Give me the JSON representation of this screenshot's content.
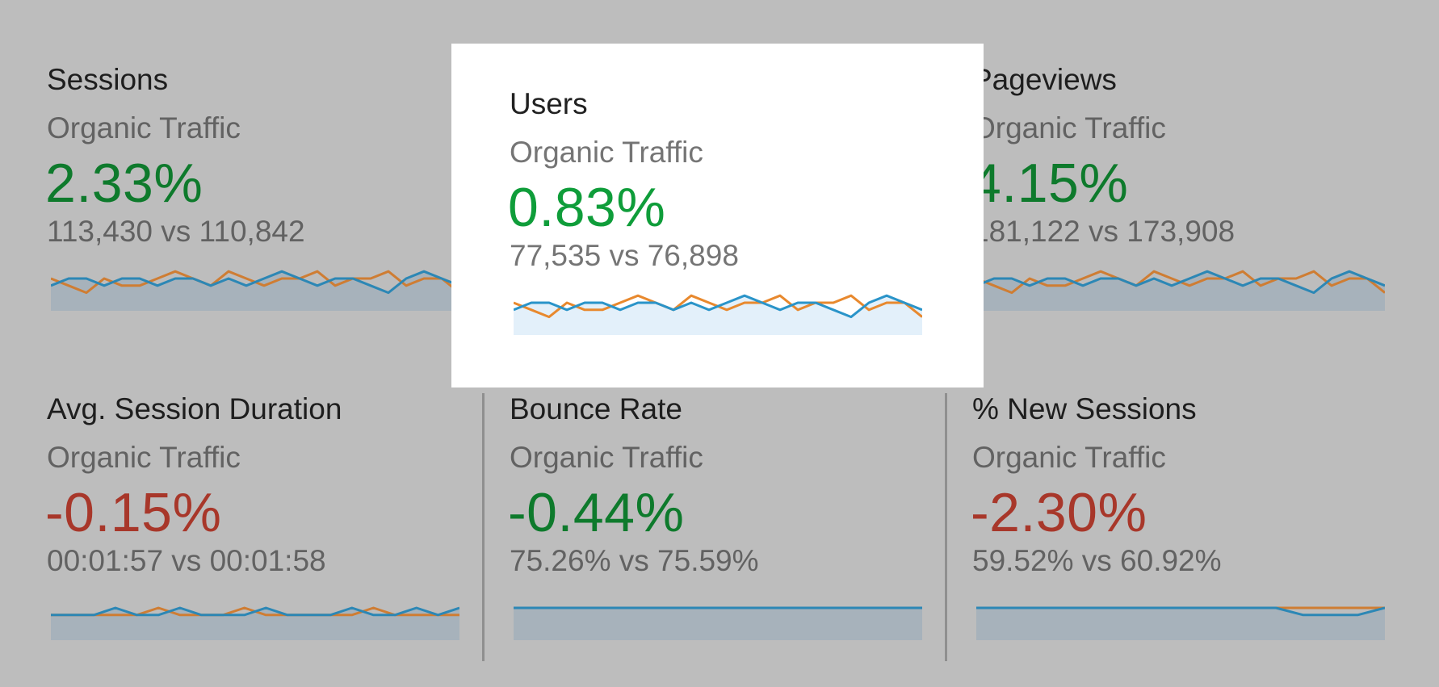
{
  "cards": [
    {
      "title": "Sessions",
      "segment": "Organic Traffic",
      "change": "2.33%",
      "compare": "113,430 vs 110,842",
      "trend": "good"
    },
    {
      "title": "Users",
      "segment": "Organic Traffic",
      "change": "0.83%",
      "compare": "77,535 vs 76,898",
      "trend": "good"
    },
    {
      "title": "Pageviews",
      "segment": "Organic Traffic",
      "change": "4.15%",
      "compare": "181,122 vs 173,908",
      "trend": "good"
    },
    {
      "title": "Avg. Session Duration",
      "segment": "Organic Traffic",
      "change": "-0.15%",
      "compare": "00:01:57 vs 00:01:58",
      "trend": "bad"
    },
    {
      "title": "Bounce Rate",
      "segment": "Organic Traffic",
      "change": "-0.44%",
      "compare": "75.26% vs 75.59%",
      "trend": "good"
    },
    {
      "title": "% New Sessions",
      "segment": "Organic Traffic",
      "change": "-2.30%",
      "compare": "59.52% vs 60.92%",
      "trend": "bad"
    }
  ],
  "colors": {
    "series_current": "#2a94c9",
    "series_previous": "#e8892e",
    "good": "#0e7a2c",
    "bad": "#a8372a",
    "overlay": "#bdbdbd",
    "focus_bg": "#ffffff"
  },
  "sparklines": {
    "sessions": {
      "current": [
        4,
        5,
        5,
        4,
        5,
        5,
        4,
        5,
        5,
        4,
        5,
        4,
        5,
        6,
        5,
        4,
        5,
        5,
        4,
        3,
        5,
        6,
        5,
        4
      ],
      "previous": [
        5,
        4,
        3,
        5,
        4,
        4,
        5,
        6,
        5,
        4,
        6,
        5,
        4,
        5,
        5,
        6,
        4,
        5,
        5,
        6,
        4,
        5,
        5,
        3
      ]
    },
    "users": {
      "current": [
        4,
        5,
        5,
        4,
        5,
        5,
        4,
        5,
        5,
        4,
        5,
        4,
        5,
        6,
        5,
        4,
        5,
        5,
        4,
        3,
        5,
        6,
        5,
        4
      ],
      "previous": [
        5,
        4,
        3,
        5,
        4,
        4,
        5,
        6,
        5,
        4,
        6,
        5,
        4,
        5,
        5,
        6,
        4,
        5,
        5,
        6,
        4,
        5,
        5,
        3
      ]
    },
    "pageviews": {
      "current": [
        4,
        5,
        5,
        4,
        5,
        5,
        4,
        5,
        5,
        4,
        5,
        4,
        5,
        6,
        5,
        4,
        5,
        5,
        4,
        3,
        5,
        6,
        5,
        4
      ],
      "previous": [
        5,
        4,
        3,
        5,
        4,
        4,
        5,
        6,
        5,
        4,
        6,
        5,
        4,
        5,
        5,
        6,
        4,
        5,
        5,
        6,
        4,
        5,
        5,
        3
      ]
    },
    "duration": {
      "current": [
        4,
        4,
        4,
        5,
        4,
        4,
        5,
        4,
        4,
        4,
        5,
        4,
        4,
        4,
        5,
        4,
        4,
        5,
        4,
        5
      ],
      "previous": [
        4,
        4,
        4,
        4,
        4,
        5,
        4,
        4,
        4,
        5,
        4,
        4,
        4,
        4,
        4,
        5,
        4,
        4,
        4,
        4
      ]
    },
    "bounce": {
      "current": [
        5,
        5,
        5,
        5,
        5,
        5,
        5,
        5,
        5,
        5,
        5,
        5,
        5,
        5,
        5,
        5
      ],
      "previous": [
        5,
        5,
        5,
        5,
        5,
        5,
        5,
        5,
        5,
        5,
        5,
        5,
        5,
        5,
        5,
        5
      ]
    },
    "newsessions": {
      "current": [
        5,
        5,
        5,
        5,
        5,
        5,
        5,
        5,
        5,
        5,
        5,
        5,
        4,
        4,
        4,
        5
      ],
      "previous": [
        5,
        5,
        5,
        5,
        5,
        5,
        5,
        5,
        5,
        5,
        5,
        5,
        5,
        5,
        5,
        5
      ]
    }
  }
}
